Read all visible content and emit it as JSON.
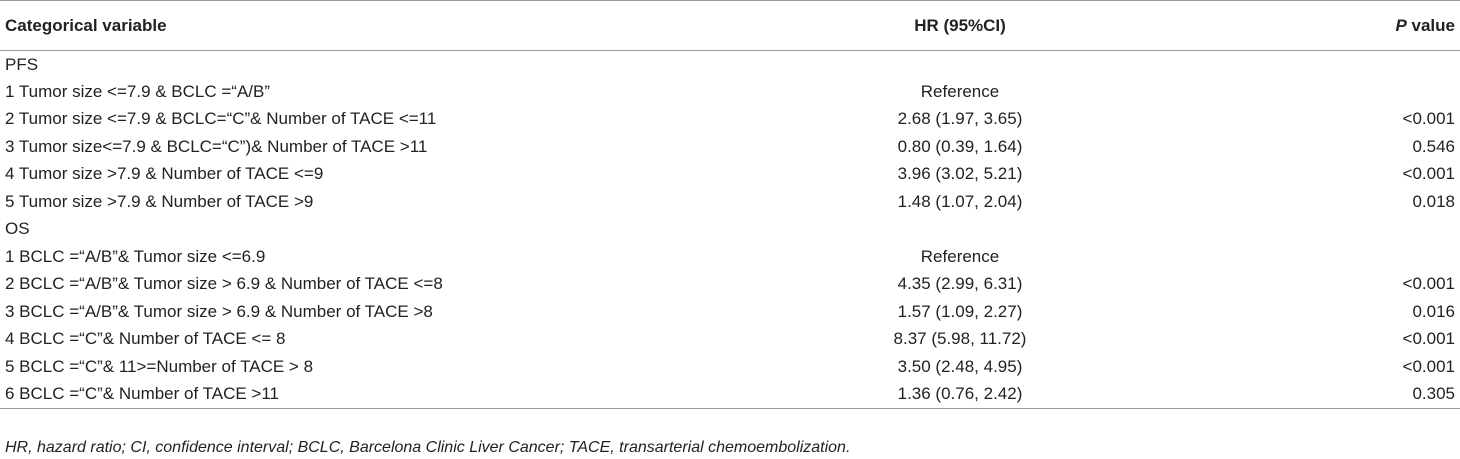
{
  "table": {
    "header": [
      "Categorical variable",
      "HR (95%CI)",
      [
        "P",
        " value"
      ]
    ],
    "sections": [
      {
        "label": "PFS",
        "rows": [
          [
            "1 Tumor size <=7.9 & BCLC =“A/B”",
            "Reference",
            ""
          ],
          [
            "2 Tumor size <=7.9 & BCLC=“C”& Number of TACE <=11",
            "2.68 (1.97, 3.65)",
            "<0.001"
          ],
          [
            "3 Tumor size<=7.9 & BCLC=“C”)& Number of TACE >11",
            "0.80 (0.39, 1.64)",
            "0.546"
          ],
          [
            "4 Tumor size >7.9 & Number of TACE <=9",
            "3.96 (3.02, 5.21)",
            "<0.001"
          ],
          [
            "5 Tumor size >7.9 & Number of TACE >9",
            "1.48 (1.07, 2.04)",
            "0.018"
          ]
        ]
      },
      {
        "label": "OS",
        "rows": [
          [
            "1 BCLC =“A/B”& Tumor size <=6.9",
            "Reference",
            ""
          ],
          [
            "2 BCLC =“A/B”& Tumor size > 6.9 & Number of TACE <=8",
            "4.35 (2.99, 6.31)",
            "<0.001"
          ],
          [
            "3 BCLC =“A/B”& Tumor size > 6.9 & Number of TACE >8",
            "1.57 (1.09, 2.27)",
            "0.016"
          ],
          [
            "4 BCLC =“C”& Number of TACE <= 8",
            "8.37 (5.98, 11.72)",
            "<0.001"
          ],
          [
            "5 BCLC =“C”& 11>=Number of TACE > 8",
            "3.50 (2.48, 4.95)",
            "<0.001"
          ],
          [
            "6 BCLC =“C”& Number of TACE >11",
            "1.36 (0.76, 2.42)",
            "0.305"
          ]
        ]
      }
    ],
    "footnote": "HR, hazard ratio; CI, confidence interval; BCLC, Barcelona Clinic Liver Cancer; TACE, transarterial chemoembolization."
  }
}
